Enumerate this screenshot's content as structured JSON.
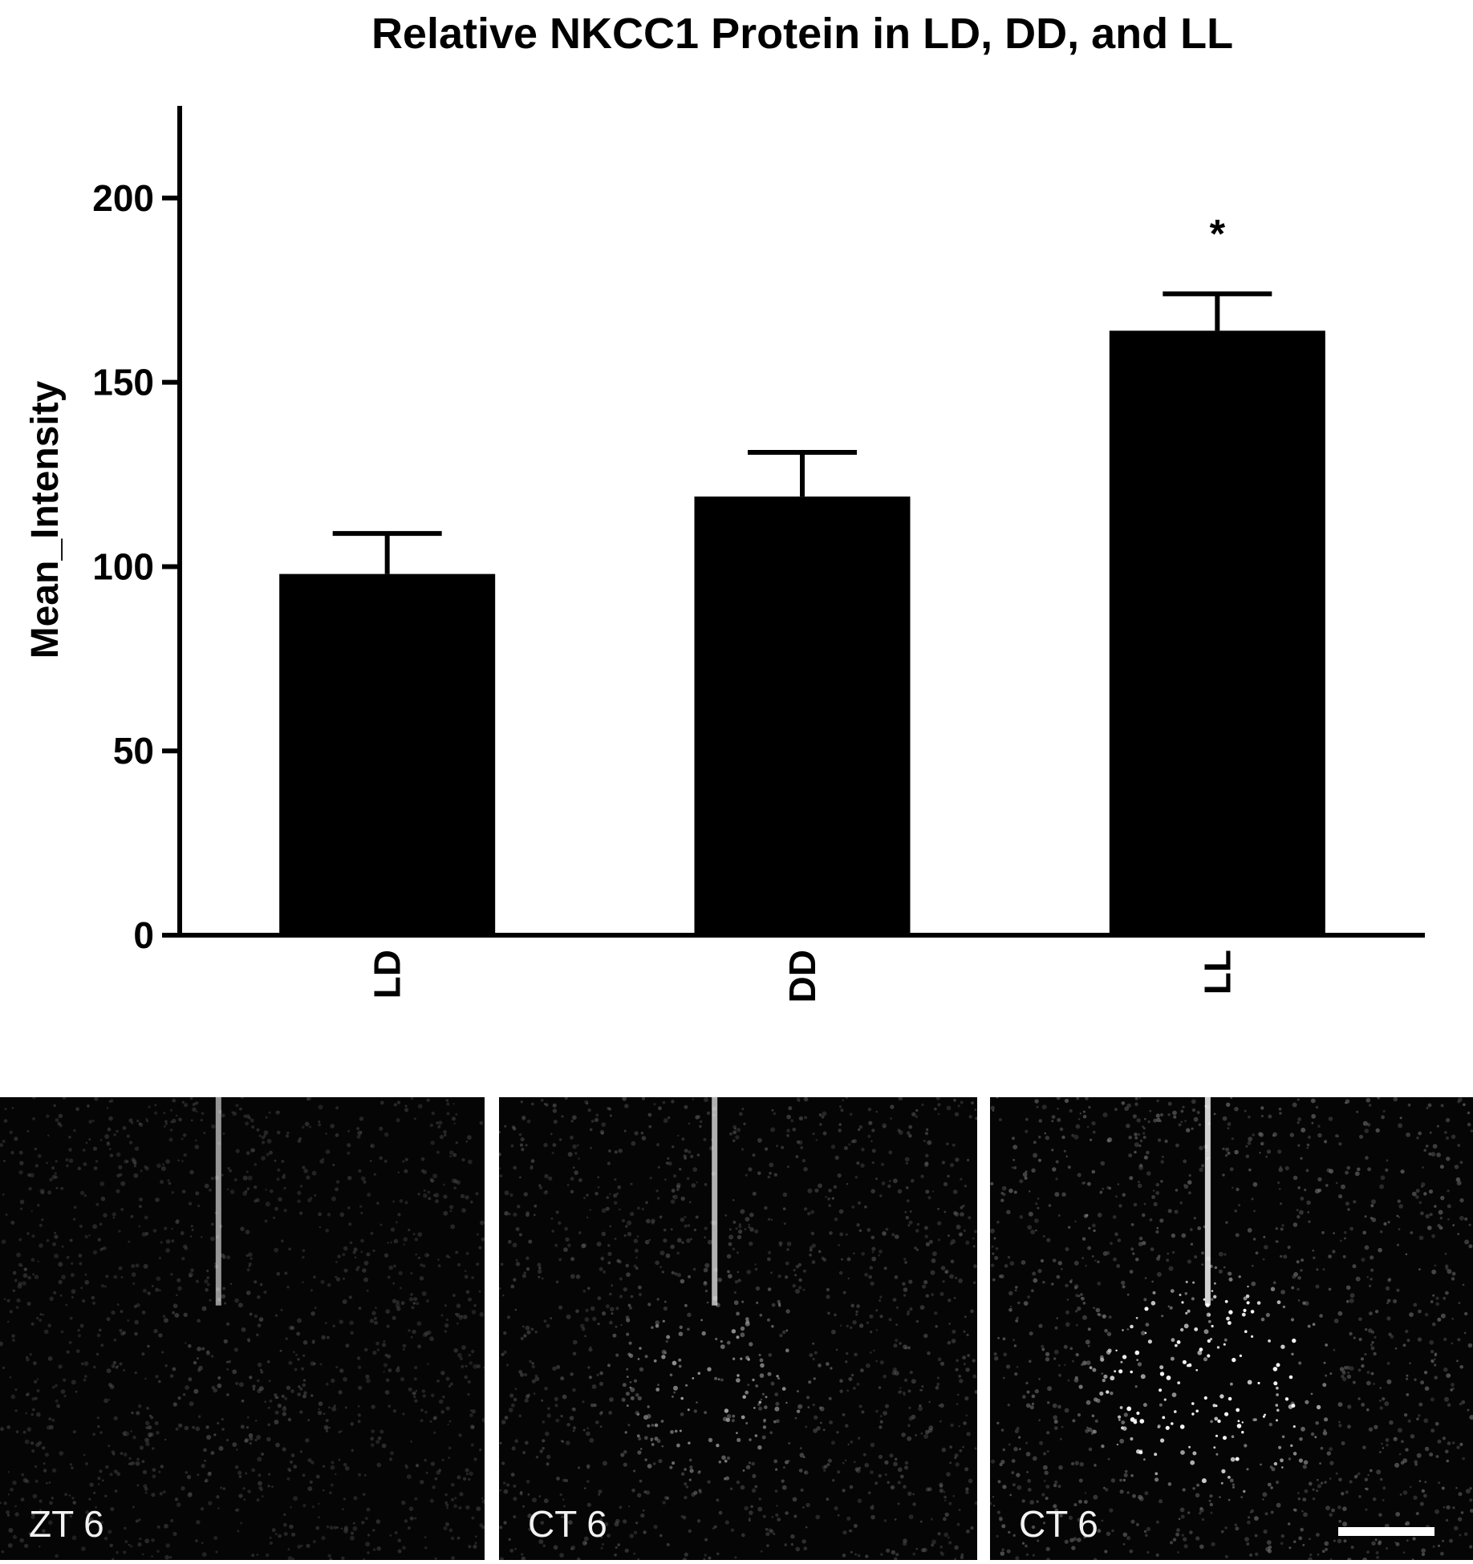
{
  "chart_data": {
    "type": "bar",
    "title": "Relative NKCC1 Protein in LD, DD, and LL",
    "xlabel": "",
    "ylabel": "Mean_Intensity",
    "categories": [
      "LD",
      "DD",
      "LL"
    ],
    "values": [
      98,
      119,
      164
    ],
    "error": [
      11,
      12,
      10
    ],
    "annotations": [
      "",
      "",
      "*"
    ],
    "ylim": [
      0,
      225
    ],
    "yticks": [
      0,
      50,
      100,
      150,
      200
    ],
    "ytick_labels": [
      "0",
      "50",
      "100",
      "150",
      "200"
    ],
    "bar_color": "#000000",
    "grid": false,
    "legend": "none"
  },
  "micrographs": [
    {
      "label": "ZT 6",
      "brightness": 0.22,
      "cluster": 0.25
    },
    {
      "label": "CT 6",
      "brightness": 0.4,
      "cluster": 0.55
    },
    {
      "label": "CT 6",
      "brightness": 0.62,
      "cluster": 1.0,
      "scale_bar": true
    }
  ]
}
